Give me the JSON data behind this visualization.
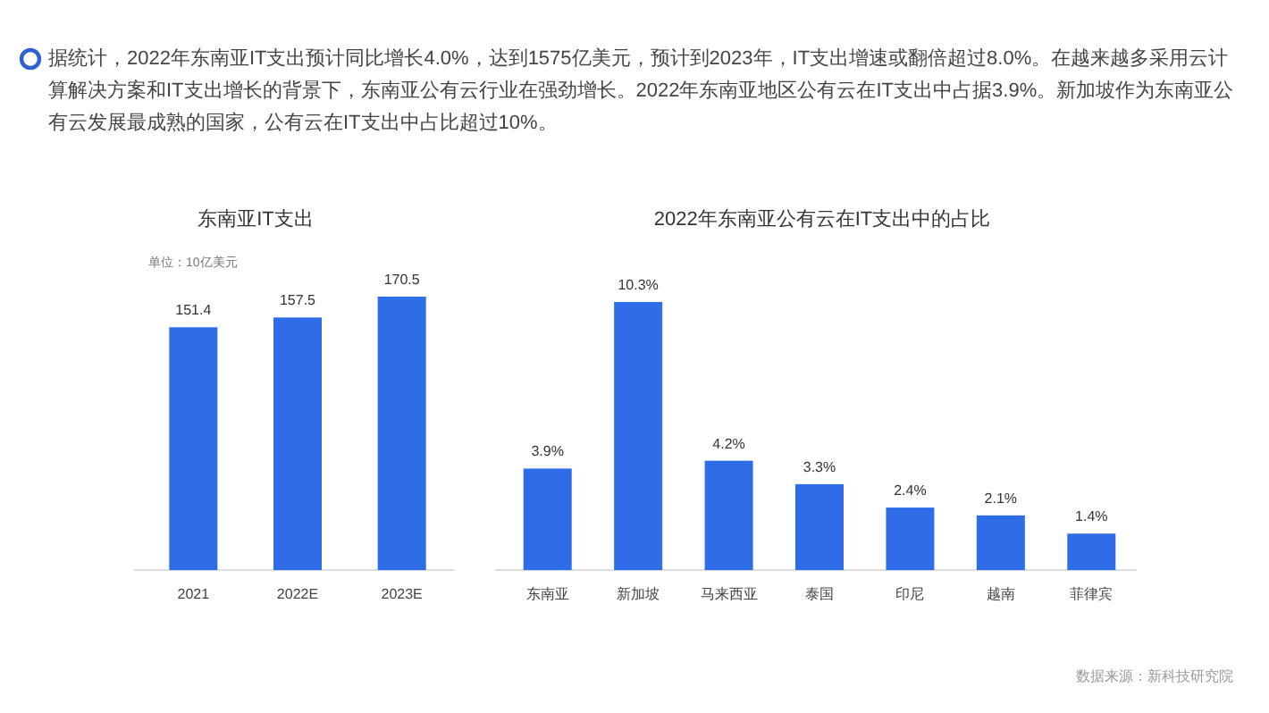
{
  "chart_data": [
    {
      "type": "other",
      "annotations": [
        "据统计，2022年东南亚IT支出预计同比增长4.0%，达到1575亿美元，预计到2023年，IT支出增速或翻倍超过8.0%。在越来越多采用云计算解决方案和IT支出增长的背景下，东南亚公有云行业在强劲增长。2022年东南亚地区公有云在IT支出中占据3.9%。新加坡作为东南亚公有云发展最成熟的国家，公有云在IT支出中占比超过10%。"
      ]
    },
    {
      "type": "bar",
      "title": "东南亚IT支出",
      "ylabel": "单位：10亿美元",
      "categories": [
        "2021",
        "2022E",
        "2023E"
      ],
      "values": [
        151.4,
        157.5,
        170.5
      ],
      "color": "#2f6de8",
      "data_labels": true,
      "tick_labels": "x"
    },
    {
      "type": "bar",
      "title": "2022年东南亚公有云在IT支出中的占比",
      "categories": [
        "东南亚",
        "新加坡",
        "马来西亚",
        "泰国",
        "印尼",
        "越南",
        "菲律宾"
      ],
      "values": [
        3.9,
        10.3,
        4.2,
        3.3,
        2.4,
        2.1,
        1.4
      ],
      "value_labels": [
        "3.9%",
        "10.3%",
        "4.2%",
        "3.3%",
        "2.4%",
        "2.1%",
        "1.4%"
      ],
      "color": "#2f6de8",
      "tick_labels": "x",
      "annotations": [
        "数据来源：新科技研究院"
      ]
    }
  ]
}
